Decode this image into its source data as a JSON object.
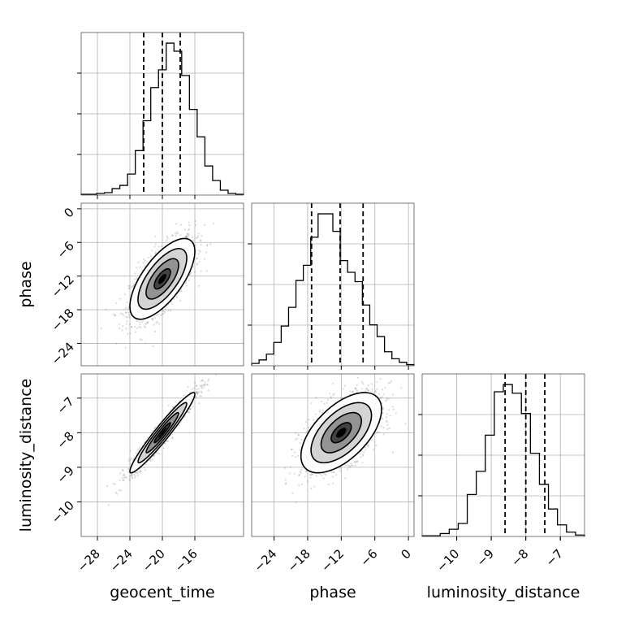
{
  "chart_data": {
    "type": "corner",
    "parameters": [
      {
        "key": "geocent_time",
        "label": "geocent_time",
        "ticks": [
          -28,
          -24,
          -20,
          -16
        ],
        "range": [
          -30,
          -10
        ],
        "quantiles": [
          -22.3,
          -20.0,
          -17.8
        ],
        "hist": [
          1,
          1,
          2,
          3,
          8,
          12,
          26,
          55,
          92,
          133,
          155,
          188,
          178,
          148,
          106,
          72,
          36,
          18,
          6,
          2,
          1
        ]
      },
      {
        "key": "phase",
        "label": "phase",
        "ticks": [
          -24,
          -18,
          -12,
          -6,
          0
        ],
        "range": [
          -28,
          1
        ],
        "quantiles": [
          -17.3,
          -12.2,
          -8.1
        ],
        "hist": [
          2,
          5,
          10,
          20,
          34,
          50,
          73,
          86,
          110,
          130,
          130,
          115,
          90,
          80,
          72,
          52,
          35,
          25,
          12,
          6,
          3,
          1
        ]
      },
      {
        "key": "luminosity_distance",
        "label": "luminosity_distance",
        "ticks": [
          -10,
          -9,
          -8,
          -7
        ],
        "range": [
          -11,
          -6.3
        ],
        "quantiles": [
          -8.6,
          -8.0,
          -7.45
        ],
        "hist": [
          1,
          1,
          4,
          10,
          18,
          58,
          90,
          140,
          200,
          210,
          198,
          170,
          115,
          72,
          38,
          16,
          6,
          2
        ]
      }
    ],
    "pairs": [
      {
        "x": "geocent_time",
        "y": "phase",
        "center": [
          -20.0,
          -12.5
        ],
        "sd": [
          2.0,
          3.6
        ],
        "corr": 0.68,
        "contours": [
          "0.5-sigma",
          "1-sigma",
          "1.5-sigma",
          "2-sigma"
        ]
      },
      {
        "x": "geocent_time",
        "y": "luminosity_distance",
        "center": [
          -20.0,
          -8.0
        ],
        "sd": [
          2.0,
          0.58
        ],
        "corr": 0.96,
        "contours": [
          "0.5-sigma",
          "1-sigma",
          "1.5-sigma",
          "2-sigma"
        ]
      },
      {
        "x": "phase",
        "y": "luminosity_distance",
        "center": [
          -12.0,
          -8.0
        ],
        "sd": [
          3.6,
          0.58
        ],
        "corr": 0.58,
        "contours": [
          "0.5-sigma",
          "1-sigma",
          "1.5-sigma",
          "2-sigma"
        ]
      }
    ],
    "grid": true,
    "quantile_lines": "dashed",
    "point_color": "#7f7f7f",
    "fill_colors": [
      "#ffffff",
      "#bfbfbf",
      "#808080",
      "#404040",
      "#000000"
    ]
  }
}
